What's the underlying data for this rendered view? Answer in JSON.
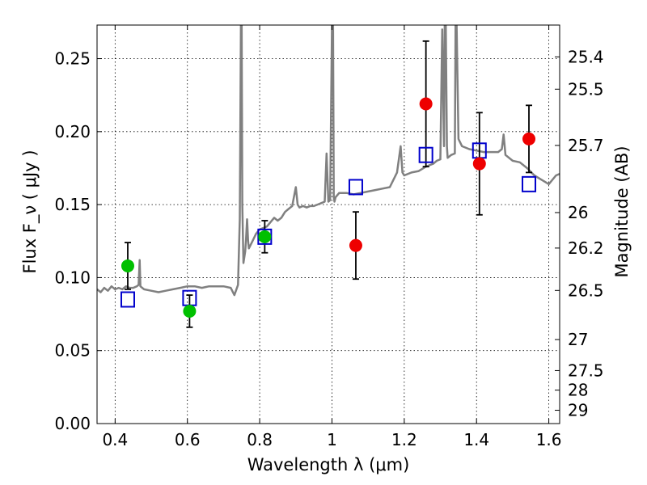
{
  "chart_data": {
    "type": "scatter",
    "title": "",
    "xlabel": "Wavelength  λ (μm)",
    "ylabel": "Flux  F_ν  ( μJy )",
    "ylabel_right": "Magnitude (AB)",
    "xlim": [
      0.35,
      1.63
    ],
    "ylim": [
      0.0,
      0.273
    ],
    "grid": true,
    "x_ticks": [
      0.4,
      0.6,
      0.8,
      1.0,
      1.2,
      1.4,
      1.6
    ],
    "x_tick_labels": [
      "0.4",
      "0.6",
      "0.8",
      "1",
      "1.2",
      "1.4",
      "1.6"
    ],
    "y_ticks": [
      0.0,
      0.05,
      0.1,
      0.15,
      0.2,
      0.25
    ],
    "y_tick_labels": [
      "0.00",
      "0.05",
      "0.10",
      "0.15",
      "0.20",
      "0.25"
    ],
    "right_ticks": [
      {
        "mag": 25.4,
        "label": "25.4"
      },
      {
        "mag": 25.5,
        "label": "25.5"
      },
      {
        "mag": 25.7,
        "label": "25.7"
      },
      {
        "mag": 26.0,
        "label": "26"
      },
      {
        "mag": 26.2,
        "label": "26.2"
      },
      {
        "mag": 26.5,
        "label": "26.5"
      },
      {
        "mag": 27.0,
        "label": "27"
      },
      {
        "mag": 27.5,
        "label": "27.5"
      },
      {
        "mag": 28.0,
        "label": "28"
      },
      {
        "mag": 29.0,
        "label": "29"
      }
    ],
    "template_spectrum": {
      "color": "#808080",
      "x": [
        0.35,
        0.36,
        0.37,
        0.38,
        0.39,
        0.4,
        0.41,
        0.42,
        0.43,
        0.44,
        0.45,
        0.46,
        0.465,
        0.468,
        0.47,
        0.475,
        0.48,
        0.5,
        0.52,
        0.54,
        0.56,
        0.58,
        0.6,
        0.62,
        0.64,
        0.66,
        0.68,
        0.7,
        0.72,
        0.73,
        0.74,
        0.745,
        0.748,
        0.75,
        0.752,
        0.755,
        0.76,
        0.762,
        0.765,
        0.768,
        0.77,
        0.78,
        0.79,
        0.8,
        0.81,
        0.82,
        0.83,
        0.84,
        0.85,
        0.86,
        0.87,
        0.88,
        0.89,
        0.9,
        0.905,
        0.91,
        0.92,
        0.93,
        0.94,
        0.95,
        0.96,
        0.97,
        0.98,
        0.985,
        0.99,
        0.995,
        1.0,
        1.003,
        1.005,
        1.007,
        1.01,
        1.02,
        1.04,
        1.06,
        1.08,
        1.1,
        1.12,
        1.14,
        1.16,
        1.18,
        1.19,
        1.195,
        1.2,
        1.22,
        1.24,
        1.26,
        1.27,
        1.28,
        1.29,
        1.3,
        1.305,
        1.31,
        1.312,
        1.315,
        1.318,
        1.32,
        1.33,
        1.34,
        1.342,
        1.345,
        1.35,
        1.36,
        1.38,
        1.4,
        1.42,
        1.44,
        1.46,
        1.47,
        1.475,
        1.48,
        1.5,
        1.52,
        1.54,
        1.56,
        1.58,
        1.6,
        1.62,
        1.63
      ],
      "y": [
        0.092,
        0.09,
        0.093,
        0.091,
        0.094,
        0.092,
        0.093,
        0.092,
        0.094,
        0.093,
        0.093,
        0.094,
        0.095,
        0.112,
        0.094,
        0.093,
        0.092,
        0.091,
        0.09,
        0.091,
        0.092,
        0.093,
        0.094,
        0.094,
        0.093,
        0.094,
        0.094,
        0.094,
        0.093,
        0.088,
        0.095,
        0.14,
        0.275,
        0.275,
        0.15,
        0.11,
        0.118,
        0.125,
        0.14,
        0.125,
        0.12,
        0.125,
        0.13,
        0.133,
        0.134,
        0.135,
        0.138,
        0.141,
        0.139,
        0.141,
        0.145,
        0.147,
        0.149,
        0.162,
        0.15,
        0.148,
        0.149,
        0.148,
        0.149,
        0.149,
        0.15,
        0.151,
        0.152,
        0.185,
        0.152,
        0.153,
        0.275,
        0.275,
        0.155,
        0.152,
        0.155,
        0.158,
        0.158,
        0.157,
        0.158,
        0.159,
        0.16,
        0.161,
        0.162,
        0.172,
        0.19,
        0.172,
        0.17,
        0.172,
        0.173,
        0.176,
        0.177,
        0.178,
        0.18,
        0.181,
        0.27,
        0.19,
        0.275,
        0.275,
        0.19,
        0.182,
        0.184,
        0.185,
        0.275,
        0.275,
        0.195,
        0.19,
        0.188,
        0.187,
        0.186,
        0.186,
        0.186,
        0.188,
        0.198,
        0.184,
        0.18,
        0.179,
        0.175,
        0.17,
        0.167,
        0.164,
        0.17,
        0.171
      ]
    },
    "series": [
      {
        "color": "#00c000",
        "marker": "filled-circle",
        "points": [
          {
            "x": 0.435,
            "y": 0.108,
            "yerr": 0.016
          },
          {
            "x": 0.606,
            "y": 0.077,
            "yerr": 0.011
          },
          {
            "x": 0.814,
            "y": 0.128,
            "yerr": 0.011
          }
        ]
      },
      {
        "color": "#ee0000",
        "marker": "filled-circle",
        "points": [
          {
            "x": 1.066,
            "y": 0.122,
            "yerr": 0.023
          },
          {
            "x": 1.26,
            "y": 0.219,
            "yerr": 0.043
          },
          {
            "x": 1.408,
            "y": 0.178,
            "yerr": 0.035
          },
          {
            "x": 1.545,
            "y": 0.195,
            "yerr": 0.023
          }
        ]
      },
      {
        "color": "#0000cc",
        "marker": "open-square",
        "points": [
          {
            "x": 0.435,
            "y": 0.085
          },
          {
            "x": 0.606,
            "y": 0.086
          },
          {
            "x": 0.814,
            "y": 0.128
          },
          {
            "x": 1.066,
            "y": 0.162
          },
          {
            "x": 1.26,
            "y": 0.184
          },
          {
            "x": 1.408,
            "y": 0.187
          },
          {
            "x": 1.545,
            "y": 0.164
          }
        ]
      }
    ]
  }
}
